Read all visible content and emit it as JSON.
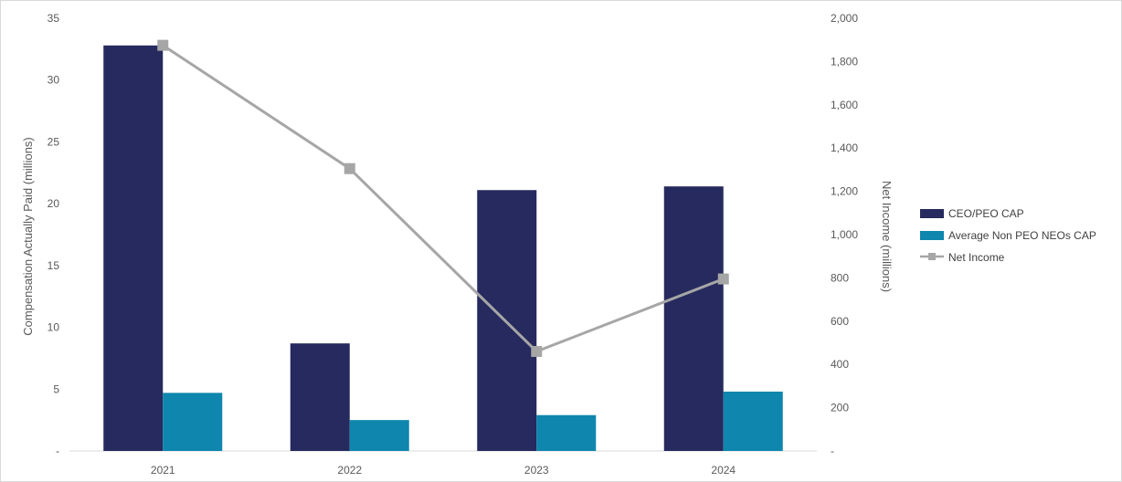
{
  "chart_data": {
    "type": "bar",
    "categories": [
      "2021",
      "2022",
      "2023",
      "2024"
    ],
    "series": [
      {
        "name": "CEO/PEO CAP",
        "type": "bar",
        "axis": "left",
        "color": "#262a5e",
        "values": [
          32.8,
          8.7,
          21.1,
          21.4
        ]
      },
      {
        "name": "Average Non PEO NEOs CAP",
        "type": "bar",
        "axis": "left",
        "color": "#0e86ad",
        "values": [
          4.7,
          2.5,
          2.9,
          4.8
        ]
      },
      {
        "name": "Net Income",
        "type": "line",
        "axis": "right",
        "color": "#a6a6a6",
        "marker": "square",
        "values": [
          1875,
          1305,
          460,
          795
        ]
      }
    ],
    "ylabel": "Compensation Actually Paid (millions)",
    "y2label": "Net Income (millions)",
    "xlabel": "",
    "ylim": [
      0,
      35
    ],
    "y2lim": [
      0,
      2000
    ],
    "yticks": [
      "-",
      "5",
      "10",
      "15",
      "20",
      "25",
      "30",
      "35"
    ],
    "y2ticks": [
      "-",
      "200",
      "400",
      "600",
      "800",
      "1,000",
      "1,200",
      "1,400",
      "1,600",
      "1,800",
      "2,000"
    ],
    "grid": false,
    "legend_position": "right"
  }
}
